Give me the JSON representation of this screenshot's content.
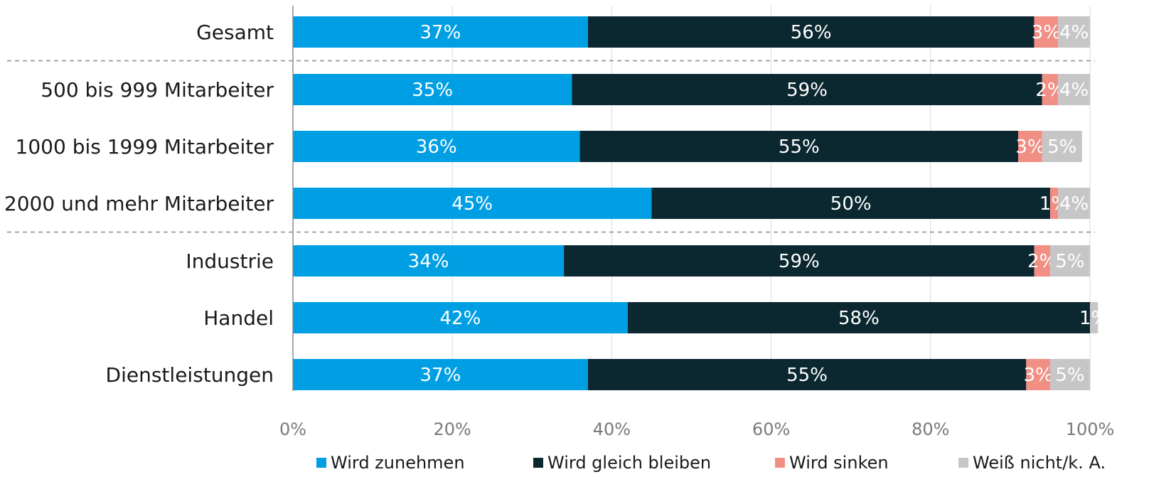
{
  "chart_data": {
    "type": "bar",
    "orientation": "horizontal",
    "stacked": true,
    "categories": [
      "Gesamt",
      "500 bis 999 Mitarbeiter",
      "1000 bis 1999 Mitarbeiter",
      "2000 und mehr Mitarbeiter",
      "Industrie",
      "Handel",
      "Dienstleistungen"
    ],
    "series": [
      {
        "name": "Wird zunehmen",
        "color": "#009fe3",
        "values": [
          37,
          35,
          36,
          45,
          34,
          42,
          37
        ],
        "labels": [
          "37%",
          "35%",
          "36%",
          "45%",
          "34%",
          "42%",
          "37%"
        ]
      },
      {
        "name": "Wird gleich bleiben",
        "color": "#0b2730",
        "values": [
          56,
          59,
          55,
          50,
          59,
          58,
          55
        ],
        "labels": [
          "56%",
          "59%",
          "55%",
          "50%",
          "59%",
          "58%",
          "55%"
        ]
      },
      {
        "name": "Wird sinken",
        "color": "#f28f84",
        "values": [
          3,
          2,
          3,
          1,
          2,
          0,
          3
        ],
        "labels": [
          "3%",
          "2%",
          "3%",
          "1%",
          "2%",
          "",
          "3%"
        ]
      },
      {
        "name": "Weiß nicht/k. A.",
        "color": "#c6c6c6",
        "values": [
          4,
          4,
          5,
          4,
          5,
          1,
          5
        ],
        "labels": [
          "4%",
          "4%",
          "5%",
          "4%",
          "5%",
          "1%",
          "5%"
        ]
      }
    ],
    "x_ticks": [
      "0%",
      "20%",
      "40%",
      "60%",
      "80%",
      "100%"
    ],
    "xlim": [
      0,
      100
    ],
    "grid": true,
    "group_separators_after": [
      0,
      3
    ],
    "legend_position": "bottom"
  }
}
